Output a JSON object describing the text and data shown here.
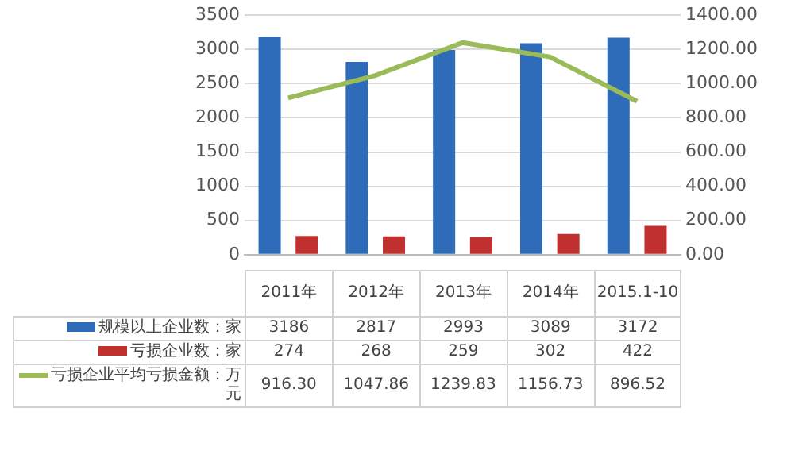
{
  "chart_data": {
    "type": "bar",
    "categories": [
      "2011年",
      "2012年",
      "2013年",
      "2014年",
      "2015.1-10"
    ],
    "series": [
      {
        "name": "规模以上企业数：家",
        "color": "#2e6bb8",
        "values": [
          3186,
          2817,
          2993,
          3089,
          3172
        ],
        "value_labels": [
          "3186",
          "2817",
          "2993",
          "3089",
          "3172"
        ]
      },
      {
        "name": "亏损企业数：家",
        "color": "#c0302f",
        "values": [
          274,
          268,
          259,
          302,
          422
        ],
        "value_labels": [
          "274",
          "268",
          "259",
          "302",
          "422"
        ]
      },
      {
        "name": "亏损企业平均亏损金额：万元",
        "type": "line",
        "axis": "y2",
        "color": "#9bbb59",
        "values": [
          916.3,
          1047.86,
          1239.83,
          1156.73,
          896.52
        ],
        "value_labels": [
          "916.30",
          "1047.86",
          "1239.83",
          "1156.73",
          "896.52"
        ]
      }
    ],
    "ylim": [
      0,
      3500
    ],
    "yticks": [
      0,
      500,
      1000,
      1500,
      2000,
      2500,
      3000,
      3500
    ],
    "y2lim": [
      0,
      1400
    ],
    "y2ticks": [
      {
        "value": 0,
        "label": "0.00"
      },
      {
        "value": 200,
        "label": "200.00"
      },
      {
        "value": 400,
        "label": "400.00"
      },
      {
        "value": 600,
        "label": "600.00"
      },
      {
        "value": 800,
        "label": "800.00"
      },
      {
        "value": 1000,
        "label": "1000.00"
      },
      {
        "value": 1200,
        "label": "1200.00"
      },
      {
        "value": 1400,
        "label": "1400.00"
      }
    ],
    "grid": "y",
    "legend": "bottom"
  }
}
